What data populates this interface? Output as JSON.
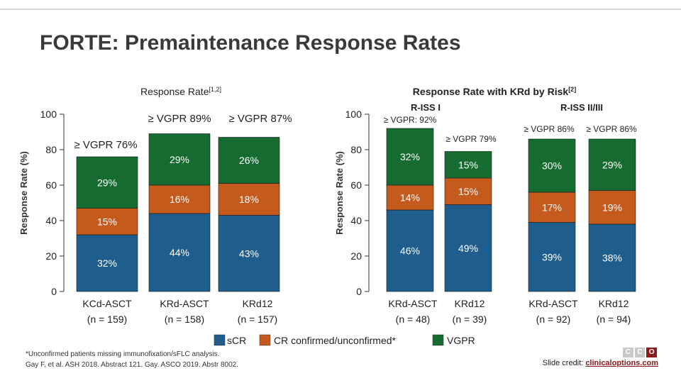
{
  "slide_title": "FORTE: Premaintenance Response Rates",
  "colors": {
    "scr": "#1f5e8c",
    "cr": "#c55a1d",
    "vgpr": "#156b30"
  },
  "legend": {
    "scr": "sCR",
    "cr": "CR confirmed/unconfirmed*",
    "vgpr": "VGPR"
  },
  "footnote": {
    "line1": "*Unconfirmed patients missing immunofixation/sFLC analysis.",
    "line2": "Gay F, et al. ASH 2018. Abstract 121. Gay. ASCO 2019. Abstr 8002."
  },
  "credit": {
    "label": "Slide credit:",
    "link": "clinicaloptions.com"
  },
  "logo": {
    "letters": [
      "C",
      "C",
      "O"
    ]
  },
  "chart_data": [
    {
      "type": "bar",
      "stacked": true,
      "title": "Response Rate",
      "title_sup": "[1,2]",
      "ylabel": "Response Rate (%)",
      "ylim": [
        0,
        100
      ],
      "yticks": [
        "0",
        "20",
        "40",
        "60",
        "80",
        "100"
      ],
      "categories": [
        {
          "name": "KCd-ASCT",
          "n": "(n = 159)"
        },
        {
          "name": "KRd-ASCT",
          "n": "(n = 158)"
        },
        {
          "name": "KRd12",
          "n": "(n = 157)"
        }
      ],
      "series": [
        {
          "name": "sCR",
          "values": [
            32,
            44,
            43
          ],
          "labels": [
            "32%",
            "44%",
            "43%"
          ]
        },
        {
          "name": "CR confirmed/unconfirmed*",
          "values": [
            15,
            16,
            18
          ],
          "labels": [
            "15%",
            "16%",
            "18%"
          ]
        },
        {
          "name": "VGPR",
          "values": [
            29,
            29,
            26
          ],
          "labels": [
            "29%",
            "29%",
            "26%"
          ]
        }
      ],
      "totals": [
        "≥ VGPR 76%",
        "≥ VGPR 89%",
        "≥ VGPR 87%"
      ]
    },
    {
      "type": "bar",
      "stacked": true,
      "title": "Response Rate with KRd by Risk",
      "title_sup": "[2]",
      "ylabel": "Response Rate (%)",
      "ylim": [
        0,
        100
      ],
      "yticks": [
        "0",
        "20",
        "40",
        "60",
        "80",
        "100"
      ],
      "groups": [
        "R-ISS I",
        "R-ISS II/III"
      ],
      "categories": [
        {
          "name": "KRd-ASCT",
          "n": "(n = 48)"
        },
        {
          "name": "KRd12",
          "n": "(n = 39)"
        },
        {
          "name": "KRd-ASCT",
          "n": "(n = 92)"
        },
        {
          "name": "KRd12",
          "n": "(n = 94)"
        }
      ],
      "series": [
        {
          "name": "sCR",
          "values": [
            46,
            49,
            39,
            38
          ],
          "labels": [
            "46%",
            "49%",
            "39%",
            "38%"
          ]
        },
        {
          "name": "CR confirmed/unconfirmed*",
          "values": [
            14,
            15,
            17,
            19
          ],
          "labels": [
            "14%",
            "15%",
            "17%",
            "19%"
          ]
        },
        {
          "name": "VGPR",
          "values": [
            32,
            15,
            30,
            29
          ],
          "labels": [
            "32%",
            "15%",
            "30%",
            "29%"
          ]
        }
      ],
      "totals": [
        "≥ VGPR: 92%",
        "≥ VGPR 79%",
        "≥ VGPR 86%",
        "≥ VGPR 86%"
      ]
    }
  ]
}
